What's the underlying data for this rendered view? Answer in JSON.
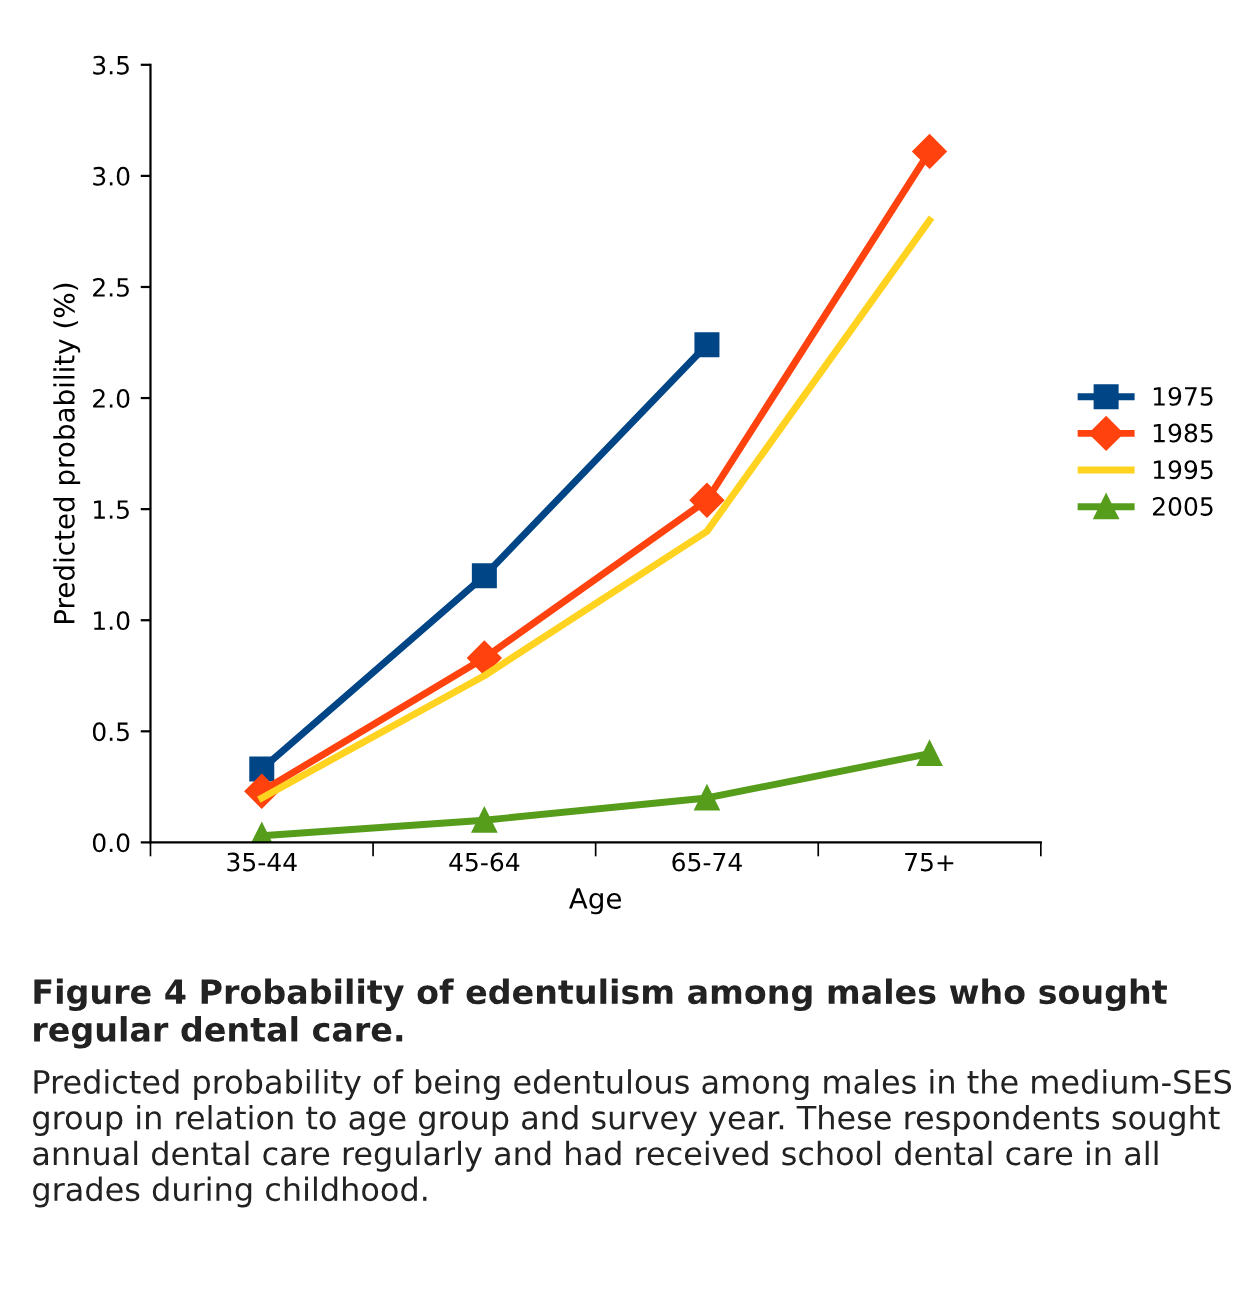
{
  "chart_data": {
    "type": "line",
    "xlabel": "Age",
    "ylabel": "Predicted probability (%)",
    "categories": [
      "35-44",
      "45-64",
      "65-74",
      "75+"
    ],
    "series": [
      {
        "name": "1975",
        "color": "#004586",
        "marker": "square",
        "values": [
          0.33,
          1.2,
          2.24,
          null
        ]
      },
      {
        "name": "1985",
        "color": "#ff420e",
        "marker": "diamond",
        "values": [
          0.23,
          0.83,
          1.54,
          3.11
        ]
      },
      {
        "name": "1995",
        "color": "#ffd320",
        "marker": "none",
        "values": [
          0.2,
          0.75,
          1.4,
          2.8
        ]
      },
      {
        "name": "2005",
        "color": "#579d1c",
        "marker": "triangle",
        "values": [
          0.03,
          0.1,
          0.2,
          0.4
        ]
      }
    ],
    "ylim": [
      0,
      3.5
    ],
    "yticks": [
      {
        "value": 0,
        "label": "0.0"
      },
      0.5,
      {
        "value": 1,
        "label": "1.0"
      },
      1.5,
      {
        "value": 2,
        "label": "2.0"
      },
      2.5,
      {
        "value": 3,
        "label": "3.0"
      },
      3.5
    ],
    "grid": false,
    "legend": "right",
    "annotations": [
      "Figure 4 Probability of edentulism among males who sought regular dental care.",
      "Predicted probability of being edentulous among males in the medium-SES group in relation to age group and survey year. These respondents sought annual dental care regularly and had received school dental care in all grades during childhood."
    ]
  }
}
